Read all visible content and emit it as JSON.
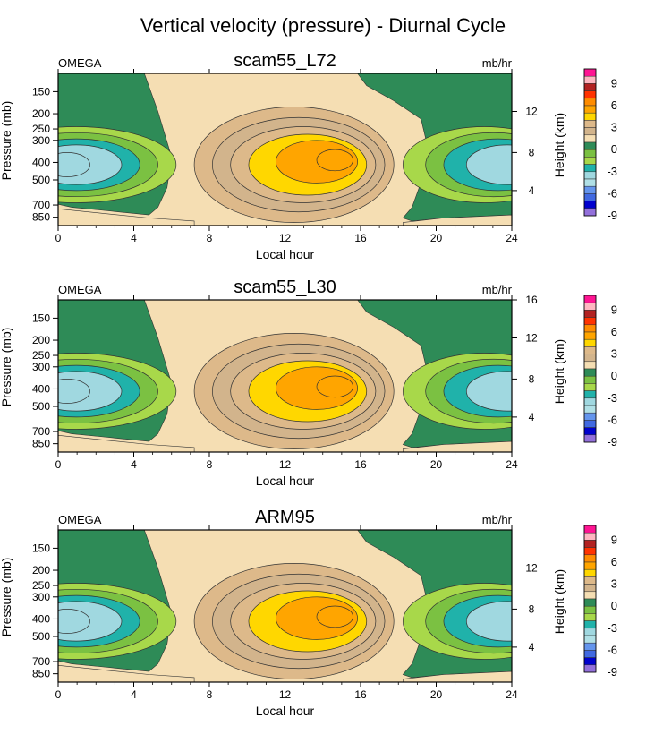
{
  "title": "Vertical velocity (pressure) - Diurnal Cycle",
  "colors": {
    "green_dark": "#2E8B57",
    "green_mid": "#7BC142",
    "green_light": "#A8D84A",
    "teal": "#20B2AA",
    "cyan_light": "#A0D8E0",
    "cyan_lighter": "#B8E6EE",
    "beige": "#F5DEB3",
    "tan_light": "#DDB98A",
    "tan": "#D2B48C",
    "yellow": "#FFD700",
    "orange": "#FFA500",
    "contour_line": "#333333"
  },
  "colorbar": {
    "label": "Height (km)",
    "tick_labels": [
      "9",
      "6",
      "3",
      "0",
      "-3",
      "-6",
      "-9"
    ],
    "segments": [
      "#FF1493",
      "#FFB6C1",
      "#B22222",
      "#FF3300",
      "#FF8C00",
      "#FFA500",
      "#FFD700",
      "#DDB98A",
      "#D2B48C",
      "#F5DEB3",
      "#2E8B57",
      "#7BC142",
      "#A8D84A",
      "#20B2AA",
      "#A0D8E0",
      "#B0E0E6",
      "#6495ED",
      "#4169E1",
      "#0000CD",
      "#9370DB"
    ]
  },
  "chart_data": [
    {
      "type": "contour",
      "name": "scam55_L72",
      "title": "scam55_L72",
      "left_label": "OMEGA",
      "right_label": "mb/hr",
      "xlabel": "Local hour",
      "ylabel": "Pressure (mb)",
      "xlim": [
        0,
        24
      ],
      "x_ticks": [
        0,
        4,
        8,
        12,
        16,
        20,
        24
      ],
      "y_ticks": [
        150,
        200,
        250,
        300,
        400,
        500,
        700,
        850
      ],
      "y2_label": "Height (km)",
      "y2_ticks": [
        4,
        8,
        12
      ]
    },
    {
      "type": "contour",
      "name": "scam55_L30",
      "title": "scam55_L30",
      "left_label": "OMEGA",
      "right_label": "mb/hr",
      "xlabel": "Local hour",
      "ylabel": "Pressure (mb)",
      "xlim": [
        0,
        24
      ],
      "x_ticks": [
        0,
        4,
        8,
        12,
        16,
        20,
        24
      ],
      "y_ticks": [
        150,
        200,
        250,
        300,
        400,
        500,
        700,
        850
      ],
      "y2_label": "Height (km)",
      "y2_ticks": [
        4,
        8,
        12,
        16
      ]
    },
    {
      "type": "contour",
      "name": "ARM95",
      "title": "ARM95",
      "left_label": "OMEGA",
      "right_label": "mb/hr",
      "xlabel": "Local hour",
      "ylabel": "Pressure (mb)",
      "xlim": [
        0,
        24
      ],
      "x_ticks": [
        0,
        4,
        8,
        12,
        16,
        20,
        24
      ],
      "y_ticks": [
        150,
        200,
        250,
        300,
        400,
        500,
        700,
        850
      ],
      "y2_label": "Height (km)",
      "y2_ticks": [
        4,
        8,
        12
      ]
    }
  ]
}
